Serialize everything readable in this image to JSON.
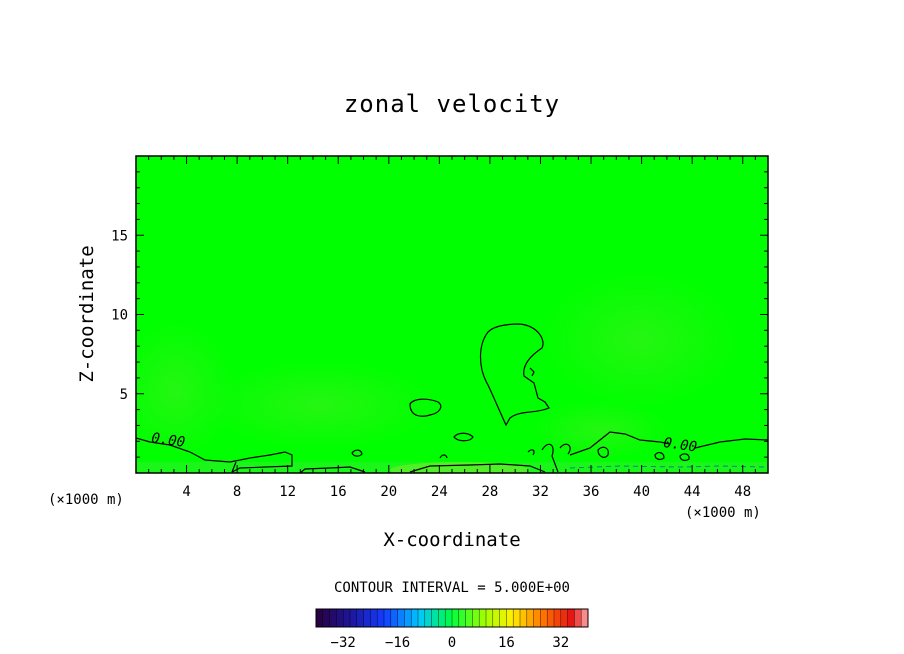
{
  "chart_data": {
    "type": "contour",
    "title": "zonal velocity",
    "xlabel": "X-coordinate",
    "ylabel": "Z-coordinate",
    "x_unit": "(×1000 m)",
    "z_unit": "(×1000 m)",
    "xlim": [
      0,
      50
    ],
    "zlim": [
      0,
      20
    ],
    "x_ticks": [
      4,
      8,
      12,
      16,
      20,
      24,
      28,
      32,
      36,
      40,
      44,
      48
    ],
    "z_ticks": [
      5,
      10,
      15
    ],
    "contour_labels": [
      {
        "text": "0.00",
        "x": 2.5,
        "z": 1.8
      },
      {
        "text": "0.00",
        "x": 43.0,
        "z": 1.5
      }
    ],
    "contour_interval_text": "CONTOUR INTERVAL = 5.000E+00",
    "colorbar": {
      "min": -40,
      "max": 40,
      "step": 2,
      "ticks": [
        -32,
        -16,
        0,
        16,
        32
      ]
    },
    "colors": {
      "field": "#00ff00",
      "field_light": "#22ff11",
      "contour_line": "#000000",
      "dashed_line": "#008877"
    }
  }
}
